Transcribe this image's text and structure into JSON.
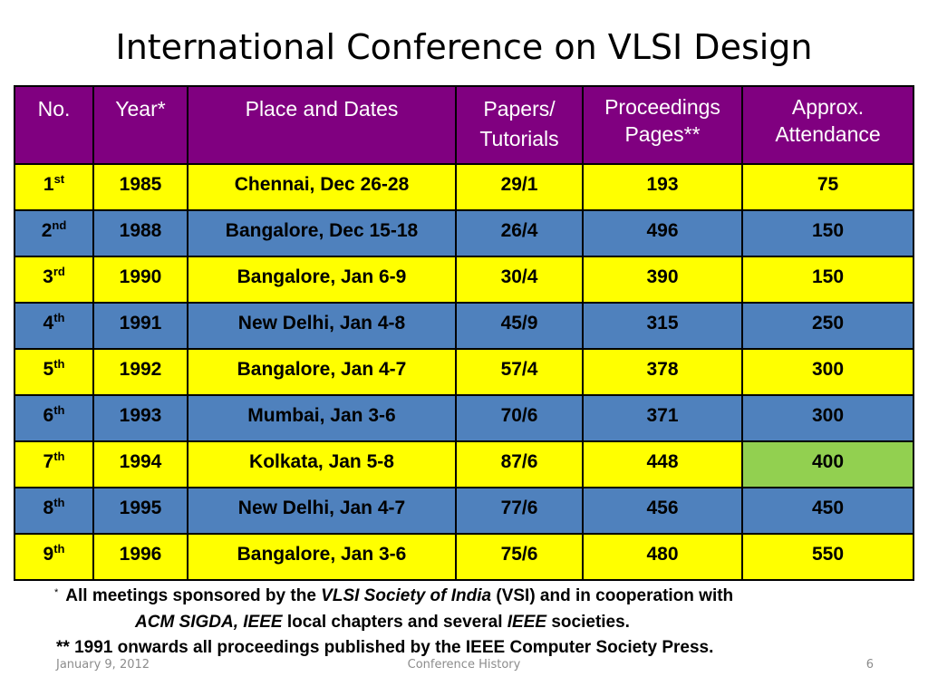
{
  "title": "International Conference on VLSI Design",
  "headers": [
    "No.",
    "Year*",
    "Place and Dates",
    "Papers/\nTutorials",
    "Proceedings\nPages**",
    "Approx.\nAttendance"
  ],
  "rows": [
    {
      "no": "1",
      "suffix": "st",
      "year": "1985",
      "place": "Chennai, Dec 26-28",
      "papers": "29/1",
      "pages": "193",
      "attendance": "75"
    },
    {
      "no": "2",
      "suffix": "nd",
      "year": "1988",
      "place": "Bangalore, Dec 15-18",
      "papers": "26/4",
      "pages": "496",
      "attendance": "150"
    },
    {
      "no": "3",
      "suffix": "rd",
      "year": "1990",
      "place": "Bangalore, Jan 6-9",
      "papers": "30/4",
      "pages": "390",
      "attendance": "150"
    },
    {
      "no": "4",
      "suffix": "th",
      "year": "1991",
      "place": "New Delhi, Jan 4-8",
      "papers": "45/9",
      "pages": "315",
      "attendance": "250"
    },
    {
      "no": "5",
      "suffix": "th",
      "year": "1992",
      "place": "Bangalore, Jan 4-7",
      "papers": "57/4",
      "pages": "378",
      "attendance": "300"
    },
    {
      "no": "6",
      "suffix": "th",
      "year": "1993",
      "place": "Mumbai, Jan 3-6",
      "papers": "70/6",
      "pages": "371",
      "attendance": "300"
    },
    {
      "no": "7",
      "suffix": "th",
      "year": "1994",
      "place": "Kolkata, Jan 5-8",
      "papers": "87/6",
      "pages": "448",
      "attendance": "400"
    },
    {
      "no": "8",
      "suffix": "th",
      "year": "1995",
      "place": "New Delhi, Jan 4-7",
      "papers": "77/6",
      "pages": "456",
      "attendance": "450"
    },
    {
      "no": "9",
      "suffix": "th",
      "year": "1996",
      "place": "Bangalore, Jan 3-6",
      "papers": "75/6",
      "pages": "480",
      "attendance": "550"
    }
  ],
  "colors": {
    "header": "#800080",
    "row_odd": "#ffff00",
    "row_even": "#4f81bd",
    "highlight": "#92d050"
  },
  "highlight_cell": {
    "row": 6,
    "column": "attendance"
  },
  "footnotes": {
    "fn1_star": "*",
    "fn1_a": "All meetings sponsored by the",
    "fn1_b": "VLSI Society of India",
    "fn1_c": "(VSI) and in cooperation with",
    "fn1_d": "ACM SIGDA, IEEE",
    "fn1_e": "local chapters and several",
    "fn1_f": "IEEE",
    "fn1_g": "societies.",
    "fn2": "** 1991 onwards all proceedings published by the IEEE Computer Society Press."
  },
  "footer": {
    "date": "January 9, 2012",
    "center": "Conference History",
    "page": "6"
  }
}
